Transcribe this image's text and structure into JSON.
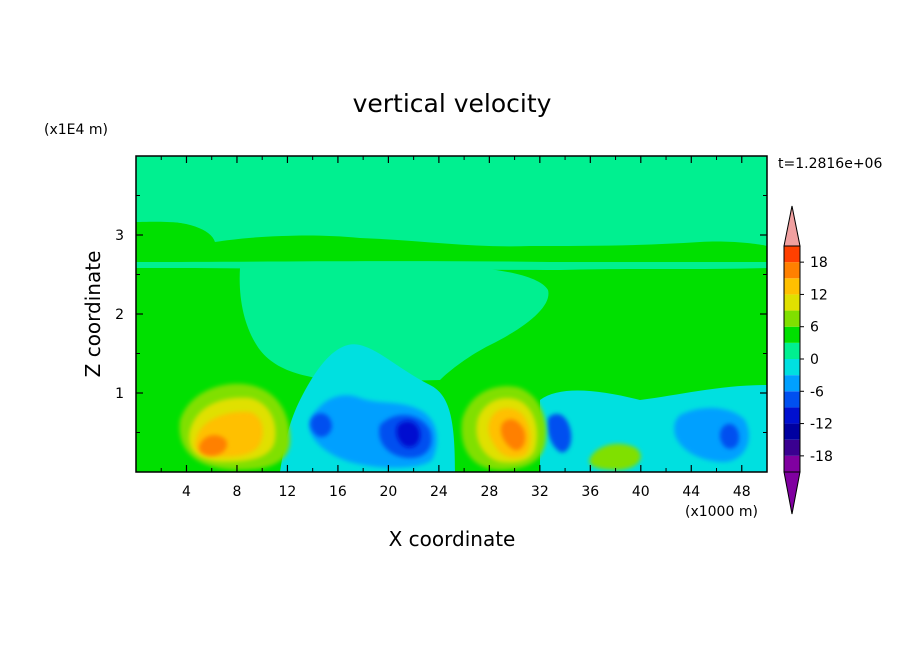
{
  "chart_data": {
    "type": "heatmap",
    "title": "vertical velocity",
    "xlabel": "X coordinate",
    "ylabel": "Z coordinate",
    "x_unit": "(x1000 m)",
    "y_unit": "(x1E4 m)",
    "time_label": "t=1.2816e+06",
    "xlim": [
      0,
      50
    ],
    "ylim": [
      0,
      4
    ],
    "x_ticks": [
      4,
      8,
      12,
      16,
      20,
      24,
      28,
      32,
      36,
      40,
      44,
      48
    ],
    "y_ticks": [
      1,
      2,
      3
    ],
    "colorbar": {
      "levels": [
        -21,
        -18,
        -15,
        -12,
        -9,
        -6,
        -3,
        0,
        3,
        6,
        9,
        12,
        15,
        18,
        21
      ],
      "tick_labels": [
        "-18",
        "-12",
        "-6",
        "0",
        "6",
        "12",
        "18"
      ],
      "tick_values": [
        -18,
        -12,
        -6,
        0,
        6,
        12,
        18
      ],
      "colors": [
        "#8000a0",
        "#3a0090",
        "#0000a0",
        "#0010d0",
        "#0050f0",
        "#00a0ff",
        "#00e0e0",
        "#00f090",
        "#00e000",
        "#80e000",
        "#e0e000",
        "#ffc000",
        "#ff8000",
        "#ff4000",
        "#e00000",
        "#f0a0a0"
      ],
      "extend": "both"
    },
    "features": [
      {
        "type": "updraft",
        "x": 7.5,
        "z": 0.45,
        "max": 15
      },
      {
        "type": "updraft",
        "x": 30,
        "z": 0.5,
        "max": 15
      },
      {
        "type": "updraft",
        "x": 38,
        "z": 0.2,
        "max": 6
      },
      {
        "type": "downdraft",
        "x": 21.5,
        "z": 0.5,
        "min": -15
      },
      {
        "type": "downdraft",
        "x": 15,
        "z": 0.6,
        "min": -12
      },
      {
        "type": "downdraft",
        "x": 46.5,
        "z": 0.45,
        "min": -12
      },
      {
        "type": "downdraft",
        "x": 34.5,
        "z": 0.5,
        "min": -9
      }
    ]
  }
}
